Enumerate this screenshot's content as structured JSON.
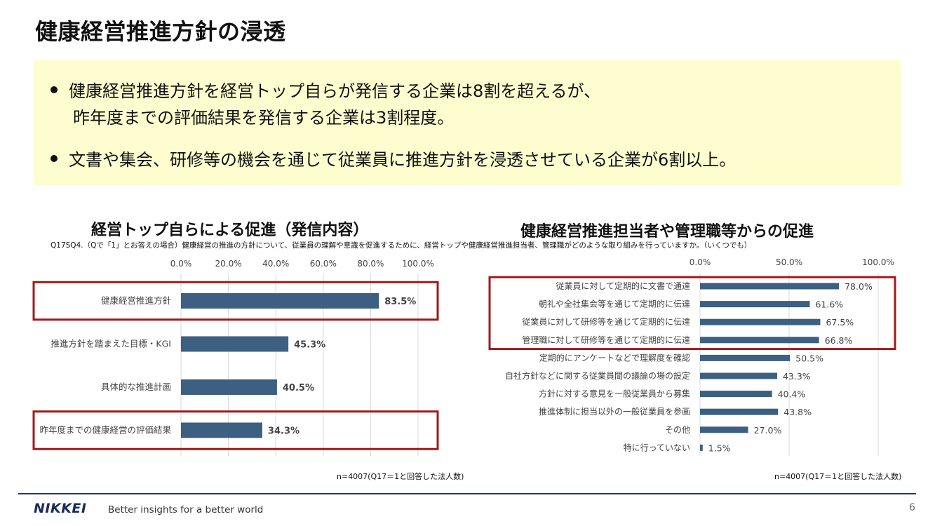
{
  "page": {
    "title": "健康経営推進方針の浸透",
    "page_number": "6"
  },
  "summary": {
    "bullet1_line1": "健康経営推進方針を経営トップ自らが発信する企業は8割を超えるが、",
    "bullet1_line2": "昨年度までの評価結果を発信する企業は3割程度。",
    "bullet2": "文書や集会、研修等の機会を通じて従業員に推進方針を浸透させている企業が6割以上。"
  },
  "question": "Q17SQ4.（Qで「1」とお答えの場合）健康経営の推進の方針について、従業員の理解や意識を促進するために、経営トップや健康経営推進担当者、管理職がどのような取り組みを行っていますか。（いくつでも）",
  "footer": {
    "logo": "NIKKEI",
    "tagline": "Better insights for a better world"
  },
  "colors": {
    "bar": "#3c5f82",
    "highlight": "#a31818",
    "summary_bg": "#fdfdcf",
    "footer_line": "#1f3c66"
  },
  "chart_data": [
    {
      "type": "bar",
      "orientation": "horizontal",
      "title": "経営トップ自らによる促進（発信内容）",
      "categories": [
        "健康経営推進方針",
        "推進方針を踏まえた目標・KGI",
        "具体的な推進計画",
        "昨年度までの健康経営の評価結果"
      ],
      "values": [
        83.5,
        45.3,
        40.5,
        34.3
      ],
      "value_labels": [
        "83.5%",
        "45.3%",
        "40.5%",
        "34.3%"
      ],
      "xlim": [
        0,
        100
      ],
      "ticks": [
        "0.0%",
        "20.0%",
        "40.0%",
        "60.0%",
        "80.0%",
        "100.0%"
      ],
      "tick_values": [
        0,
        20,
        40,
        60,
        80,
        100
      ],
      "highlighted": [
        "健康経営推進方針",
        "昨年度までの健康経営の評価結果"
      ],
      "note": "n=4007(Q17＝1と回答した法人数)"
    },
    {
      "type": "bar",
      "orientation": "horizontal",
      "title": "健康経営推進担当者や管理職等からの促進",
      "categories": [
        "従業員に対して定期的に文書で通達",
        "朝礼や全社集会等を通じて定期的に伝達",
        "従業員に対して研修等を通じて定期的に伝達",
        "管理職に対して研修等を通じて定期的に伝達",
        "定期的にアンケートなどで理解度を確認",
        "自社方針などに関する従業員間の議論の場の設定",
        "方針に対する意見を一般従業員から募集",
        "推進体制に担当以外の一般従業員を参画",
        "その他",
        "特に行っていない"
      ],
      "values": [
        78.0,
        61.6,
        67.5,
        66.8,
        50.5,
        43.3,
        40.4,
        43.8,
        27.0,
        1.5
      ],
      "value_labels": [
        "78.0%",
        "61.6%",
        "67.5%",
        "66.8%",
        "50.5%",
        "43.3%",
        "40.4%",
        "43.8%",
        "27.0%",
        "1.5%"
      ],
      "xlim": [
        0,
        100
      ],
      "ticks": [
        "0.0%",
        "50.0%",
        "100.0%"
      ],
      "tick_values": [
        0,
        50,
        100
      ],
      "highlighted": [
        "従業員に対して定期的に文書で通達",
        "朝礼や全社集会等を通じて定期的に伝達",
        "従業員に対して研修等を通じて定期的に伝達",
        "管理職に対して研修等を通じて定期的に伝達"
      ],
      "note": "n=4007(Q17＝1と回答した法人数)"
    }
  ]
}
